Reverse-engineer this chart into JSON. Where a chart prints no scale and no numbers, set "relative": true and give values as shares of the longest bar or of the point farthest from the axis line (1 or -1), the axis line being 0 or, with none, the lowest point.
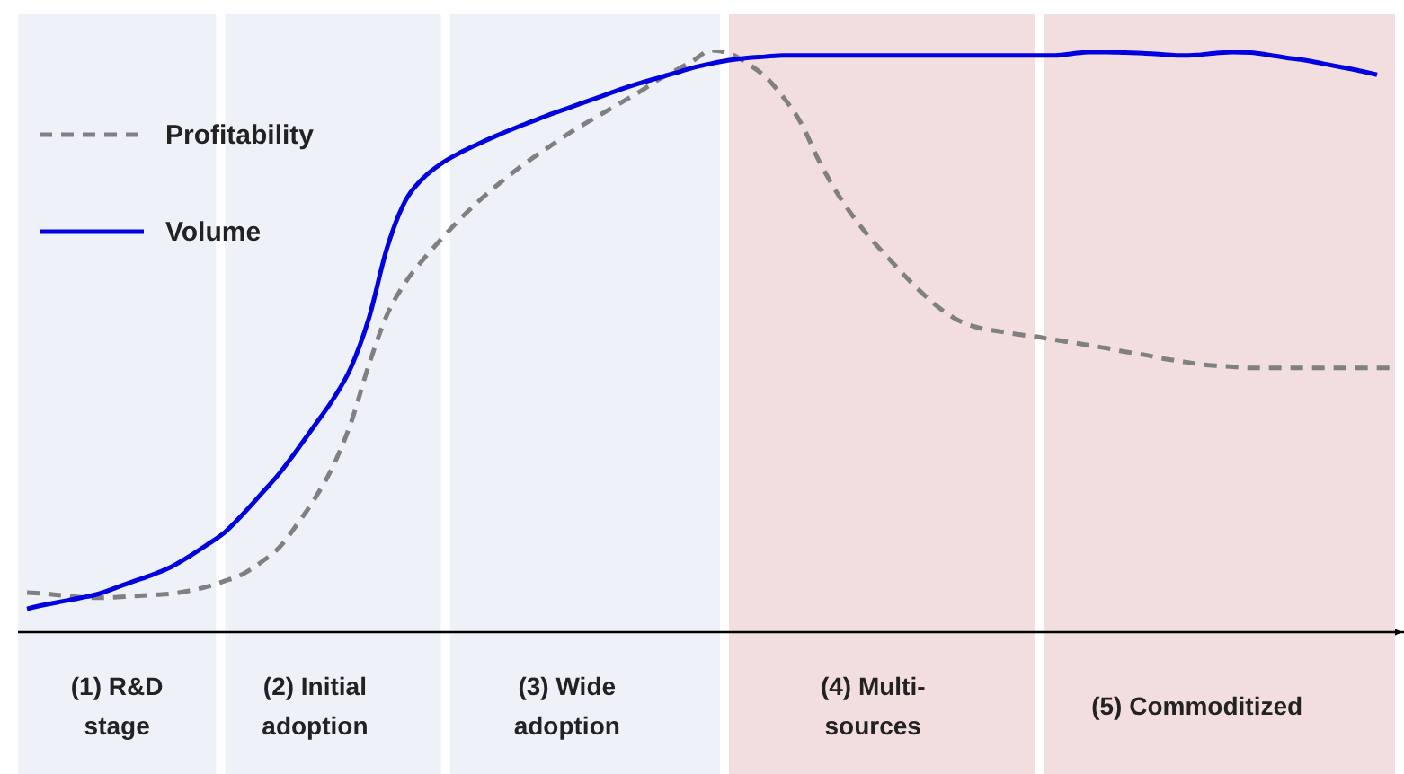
{
  "chart_data": {
    "type": "line",
    "relative": true,
    "legend": "top left",
    "marker": "none",
    "grid": false,
    "categories": [
      null,
      null,
      null,
      null,
      null,
      "(1) R&D\nstage",
      null,
      null,
      null,
      null,
      null,
      null,
      null,
      null,
      null,
      null,
      "(2) Initial\nadoption",
      null,
      null,
      null,
      null,
      null,
      null,
      null,
      null,
      null,
      null,
      null,
      null,
      null,
      "(3) Wide\nadoption",
      null,
      null,
      null,
      null,
      null,
      null,
      null,
      null,
      null,
      null,
      null,
      null,
      null,
      null,
      null,
      null,
      "(4) Multi-\nsources",
      null,
      null,
      null,
      null,
      null,
      null,
      null,
      null,
      null,
      null,
      null,
      null,
      null,
      null,
      null,
      null,
      null,
      "(5) Commoditized",
      null,
      null,
      null,
      null,
      null,
      null,
      null,
      null,
      null,
      null,
      null
    ],
    "series": [
      {
        "name": "Profitability",
        "color": "#808080",
        "line_style": "dashed",
        "values": [
          0.068,
          0.066,
          0.063,
          0.06,
          0.059,
          0.06,
          0.062,
          0.064,
          0.066,
          0.071,
          0.078,
          0.088,
          0.1,
          0.12,
          0.145,
          0.185,
          0.23,
          0.285,
          0.36,
          0.46,
          0.545,
          0.6,
          0.64,
          0.675,
          0.708,
          0.738,
          0.765,
          0.79,
          0.813,
          0.834,
          0.855,
          0.874,
          0.892,
          0.91,
          0.928,
          0.948,
          0.965,
          0.982,
          1,
          0.995,
          0.978,
          0.955,
          0.92,
          0.875,
          0.81,
          0.755,
          0.71,
          0.672,
          0.638,
          0.605,
          0.575,
          0.55,
          0.532,
          0.522,
          0.517,
          0.512,
          0.508,
          0.503,
          0.498,
          0.493,
          0.488,
          0.482,
          0.477,
          0.471,
          0.466,
          0.461,
          0.458,
          0.456,
          0.454,
          0.454,
          0.454,
          0.454,
          0.454,
          0.454,
          0.454,
          0.454,
          0.454
        ]
      },
      {
        "name": "Volume",
        "color": "#0000e0",
        "line_style": "solid",
        "values": [
          0.04,
          0.047,
          0.053,
          0.059,
          0.066,
          0.077,
          0.088,
          0.099,
          0.112,
          0.13,
          0.15,
          0.172,
          0.203,
          0.237,
          0.272,
          0.313,
          0.356,
          0.4,
          0.455,
          0.54,
          0.66,
          0.74,
          0.78,
          0.805,
          0.823,
          0.838,
          0.852,
          0.865,
          0.877,
          0.889,
          0.9,
          0.911,
          0.922,
          0.933,
          0.943,
          0.952,
          0.961,
          0.97,
          0.977,
          0.983,
          0.987,
          0.989,
          0.991,
          0.991,
          0.991,
          0.991,
          0.991,
          0.991,
          0.991,
          0.991,
          0.991,
          0.991,
          0.991,
          0.991,
          0.991,
          0.991,
          0.991,
          0.991,
          0.994,
          0.997,
          0.997,
          0.996,
          0.995,
          0.993,
          0.991,
          0.992,
          0.995,
          0.997,
          0.996,
          0.992,
          0.987,
          0.983,
          0.977,
          0.971,
          0.965,
          0.958,
          null
        ]
      }
    ]
  }
}
